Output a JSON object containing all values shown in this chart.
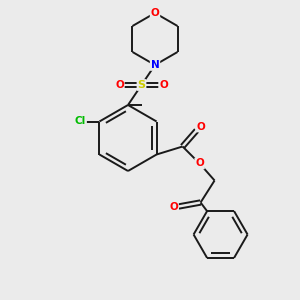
{
  "bg_color": "#ebebeb",
  "bond_color": "#1a1a1a",
  "atom_colors": {
    "O": "#ff0000",
    "N": "#0000ff",
    "S": "#cccc00",
    "Cl": "#00bb00",
    "C": "#1a1a1a"
  },
  "figsize": [
    3.0,
    3.0
  ],
  "dpi": 100,
  "lw": 1.4,
  "off": 2.2
}
